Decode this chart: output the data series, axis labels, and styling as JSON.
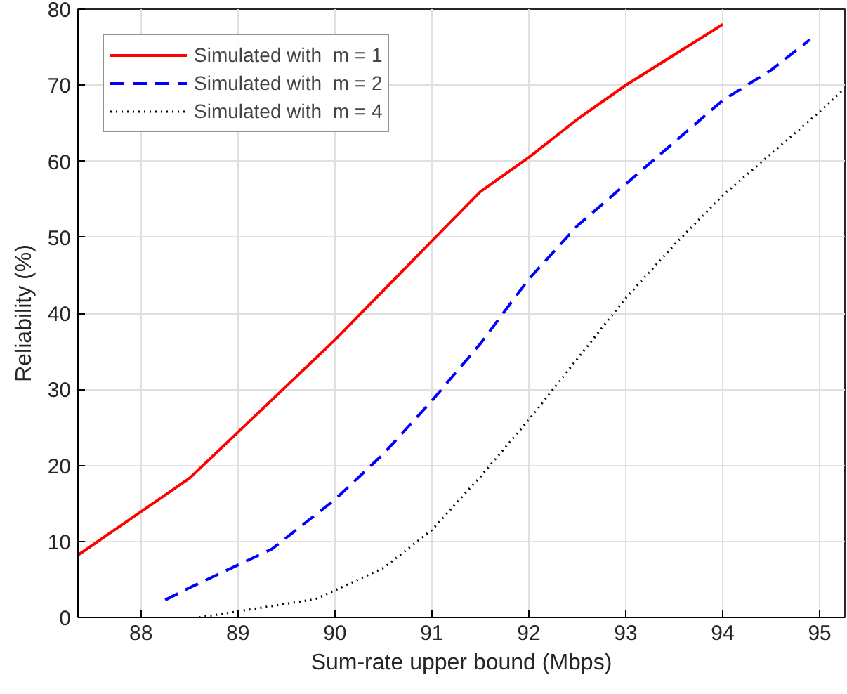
{
  "chart_data": {
    "type": "line",
    "xlabel": "Sum-rate upper bound (Mbps)",
    "ylabel": "Reliability (%)",
    "xlim": [
      87.35,
      95.26
    ],
    "xticks": [
      88,
      89,
      90,
      91,
      92,
      93,
      94,
      95
    ],
    "ylim": [
      0,
      80
    ],
    "yticks": [
      0,
      10,
      20,
      30,
      40,
      50,
      60,
      70,
      80
    ],
    "grid": true,
    "legend": "top left",
    "series": [
      {
        "name": "Simulated with  m = 1",
        "color": "#ff0000",
        "line_style": "solid",
        "x": [
          87.35,
          88.5,
          89.3,
          90,
          91,
          91.5,
          92,
          92.5,
          93,
          93.5,
          94
        ],
        "values": [
          8.2,
          18.3,
          28,
          36.5,
          49.5,
          56,
          60.5,
          65.5,
          70,
          74,
          78
        ]
      },
      {
        "name": "Simulated with  m = 2",
        "color": "#0000ff",
        "line_style": "dashed",
        "x": [
          88.25,
          88.5,
          89.35,
          90,
          90.5,
          91,
          91.5,
          92,
          92.5,
          93,
          93.5,
          94,
          94.5,
          94.9
        ],
        "values": [
          2.3,
          3.9,
          9,
          15.5,
          21.5,
          28.5,
          36,
          44.5,
          51.5,
          57,
          62.5,
          68,
          72,
          76
        ]
      },
      {
        "name": "Simulated with  m = 4",
        "color": "#000000",
        "line_style": "dotted",
        "x": [
          88.6,
          89,
          89.8,
          90.5,
          91,
          91.5,
          92,
          92.5,
          93,
          93.5,
          94,
          94.5,
          95,
          95.25
        ],
        "values": [
          0,
          0.8,
          2.4,
          6.5,
          11.5,
          18.5,
          26,
          34,
          42,
          49,
          55.5,
          61,
          66.5,
          69.5
        ]
      }
    ]
  }
}
